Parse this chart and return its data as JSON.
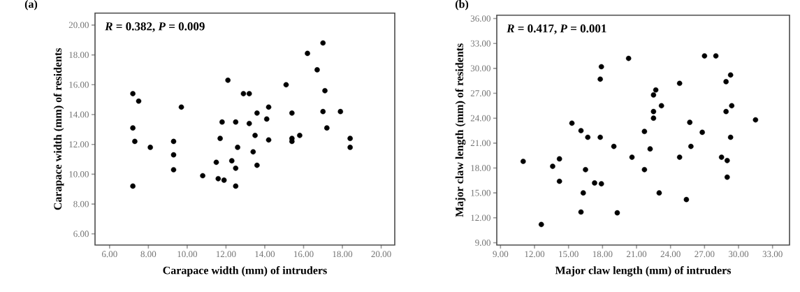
{
  "chart_data": [
    {
      "type": "scatter",
      "title": "(a)",
      "xlabel": "Carapace width (mm) of intruders",
      "ylabel": "Carapace width (mm) of residents",
      "annotations": [
        "*R* = 0.382, *P* = 0.009"
      ],
      "color": "#000000",
      "marker": "circle",
      "xlim": [
        5.25,
        20.7
      ],
      "ylim": [
        5.25,
        20.8
      ],
      "xticks": [
        {
          "value": 6,
          "label": "6.00"
        },
        {
          "value": 8,
          "label": "8.00"
        },
        {
          "value": 10,
          "label": "10.00"
        },
        {
          "value": 12,
          "label": "12.00"
        },
        {
          "value": 14,
          "label": "14.00"
        },
        {
          "value": 16,
          "label": "16.00"
        },
        {
          "value": 18,
          "label": "18.00"
        },
        {
          "value": 20,
          "label": "20.00"
        }
      ],
      "yticks": [
        {
          "value": 6,
          "label": "6.00"
        },
        {
          "value": 8,
          "label": "8.00"
        },
        {
          "value": 10,
          "label": "10.00"
        },
        {
          "value": 12,
          "label": "12.00"
        },
        {
          "value": 14,
          "label": "14.00"
        },
        {
          "value": 16,
          "label": "16.00"
        },
        {
          "value": 18,
          "label": "18.00"
        },
        {
          "value": 20,
          "label": "20.00"
        }
      ],
      "x": [
        7.2,
        7.5,
        7.2,
        7.3,
        8.1,
        9.7,
        9.3,
        9.3,
        12.1,
        11.8,
        12.5,
        13.2,
        12.9,
        13.2,
        11.7,
        13.6,
        14.2,
        14.1,
        13.5,
        14.2,
        12.6,
        13.4,
        15.1,
        16.2,
        17.0,
        16.7,
        17.1,
        15.4,
        17.0,
        17.9,
        17.2,
        15.4,
        15.4,
        15.8,
        18.4,
        18.4,
        7.2,
        9.3,
        10.8,
        11.5,
        11.6,
        11.9,
        12.3,
        12.5,
        12.5,
        13.6
      ],
      "values": [
        15.4,
        14.9,
        13.1,
        12.2,
        11.8,
        14.5,
        12.2,
        11.3,
        16.3,
        13.5,
        13.5,
        13.4,
        15.4,
        15.4,
        12.4,
        14.1,
        14.5,
        13.7,
        12.6,
        12.3,
        11.8,
        11.5,
        16.0,
        18.1,
        18.8,
        17.0,
        15.6,
        14.1,
        14.2,
        14.2,
        13.1,
        12.4,
        12.2,
        12.6,
        12.4,
        11.8,
        9.2,
        10.3,
        9.9,
        10.8,
        9.7,
        9.6,
        10.9,
        10.4,
        9.2,
        10.6
      ]
    },
    {
      "type": "scatter",
      "title": "(b)",
      "xlabel": "Major claw length (mm) of intruders",
      "ylabel": "Major claw length (mm) of residents",
      "annotations": [
        "*R* = 0.417, *P* = 0.001"
      ],
      "color": "#000000",
      "marker": "circle",
      "xlim": [
        8.67,
        34.5
      ],
      "ylim": [
        8.72,
        36.4
      ],
      "xticks": [
        {
          "value": 9,
          "label": "9.00"
        },
        {
          "value": 12,
          "label": "12.00"
        },
        {
          "value": 15,
          "label": "15.00"
        },
        {
          "value": 18,
          "label": "18.00"
        },
        {
          "value": 21,
          "label": "21.00"
        },
        {
          "value": 24,
          "label": "24.00"
        },
        {
          "value": 27,
          "label": "27.00"
        },
        {
          "value": 30,
          "label": "30.00"
        },
        {
          "value": 33,
          "label": "33.00"
        }
      ],
      "yticks": [
        {
          "value": 9,
          "label": "9.00"
        },
        {
          "value": 12,
          "label": "12.00"
        },
        {
          "value": 15,
          "label": "15.00"
        },
        {
          "value": 18,
          "label": "18.00"
        },
        {
          "value": 21,
          "label": "21.00"
        },
        {
          "value": 24,
          "label": "24.00"
        },
        {
          "value": 27,
          "label": "27.00"
        },
        {
          "value": 30,
          "label": "30.00"
        },
        {
          "value": 33,
          "label": "33.00"
        },
        {
          "value": 36,
          "label": "36.00"
        }
      ],
      "x": [
        20.3,
        17.9,
        17.8,
        15.3,
        16.1,
        16.7,
        17.8,
        19.0,
        21.7,
        22.2,
        22.7,
        22.5,
        23.2,
        22.5,
        22.5,
        24.8,
        25.7,
        26.8,
        25.8,
        27.0,
        28.0,
        29.3,
        28.9,
        29.4,
        28.9,
        29.3,
        31.5,
        11.0,
        13.6,
        14.2,
        14.2,
        12.6,
        16.1,
        16.3,
        16.5,
        17.3,
        17.9,
        19.3,
        20.6,
        21.7,
        23.0,
        24.8,
        25.4,
        28.5,
        29.0,
        29.0
      ],
      "values": [
        31.2,
        30.2,
        28.7,
        23.4,
        22.5,
        21.7,
        21.7,
        20.6,
        22.4,
        20.3,
        27.4,
        26.8,
        25.5,
        24.8,
        24.0,
        28.2,
        23.5,
        22.3,
        20.6,
        31.5,
        31.5,
        29.2,
        28.4,
        25.5,
        24.8,
        21.7,
        23.8,
        18.8,
        18.2,
        19.1,
        16.4,
        11.2,
        12.7,
        15.0,
        17.8,
        16.2,
        16.1,
        12.6,
        19.3,
        17.8,
        15.0,
        19.3,
        14.2,
        19.3,
        18.9,
        16.9
      ]
    }
  ]
}
